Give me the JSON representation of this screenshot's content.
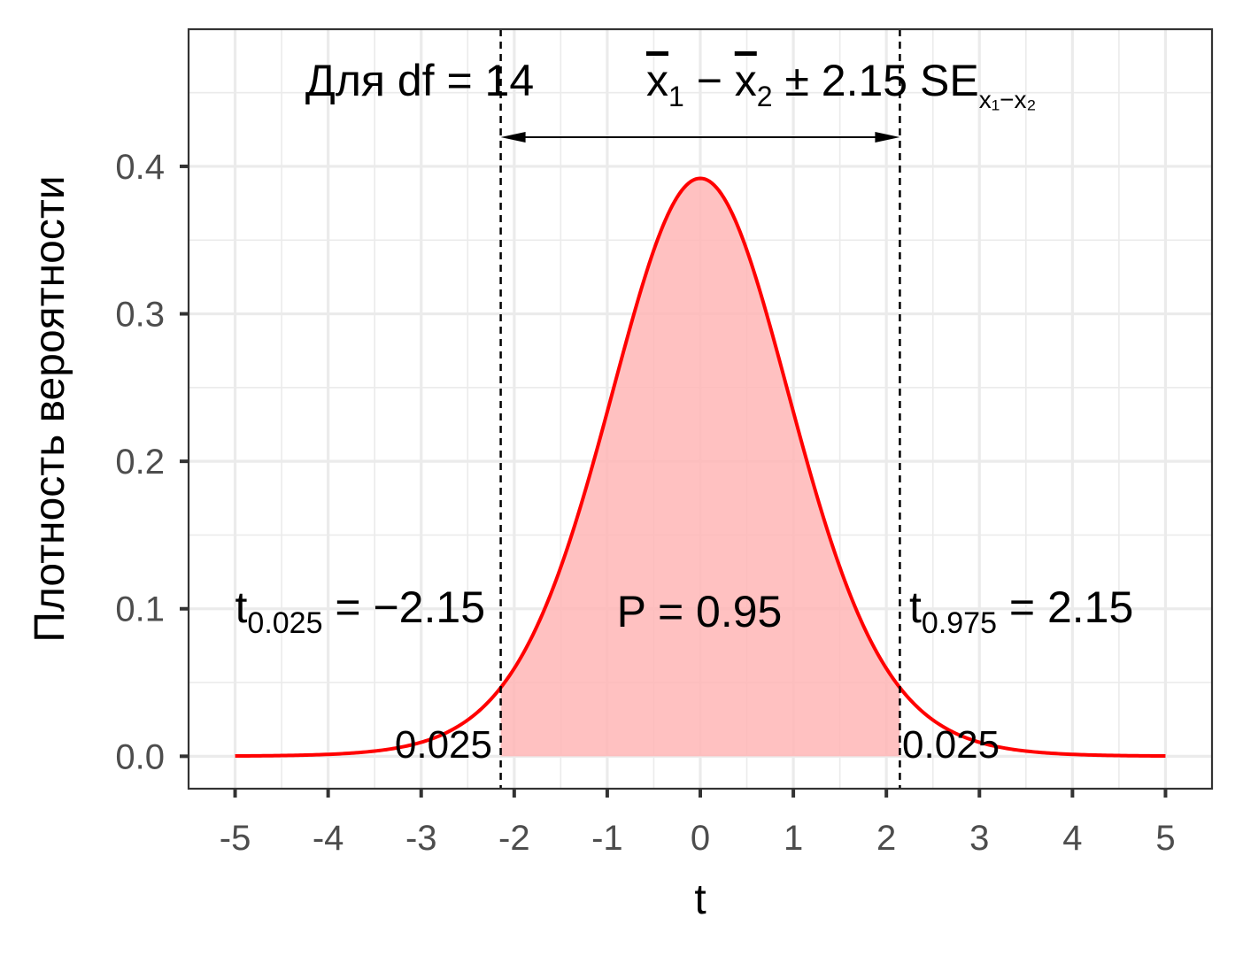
{
  "chart_data": {
    "type": "line",
    "title": "",
    "xlabel": "t",
    "ylabel": "Плотность вероятности",
    "xlim": [
      -5.5,
      5.5
    ],
    "ylim": [
      -0.022,
      0.493
    ],
    "x_ticks": [
      "-5",
      "-4",
      "-3",
      "-2",
      "-1",
      "0",
      "1",
      "2",
      "3",
      "4",
      "5"
    ],
    "y_ticks": [
      "0.0",
      "0.1",
      "0.2",
      "0.3",
      "0.4"
    ],
    "grid": true,
    "series": [
      {
        "distribution": "Student t",
        "df": 14,
        "color": "#ff0000",
        "x": [
          -5.0,
          -4.5,
          -4.0,
          -3.5,
          -3.0,
          -2.5,
          -2.145,
          -2.0,
          -1.5,
          -1.0,
          -0.5,
          0.0,
          0.5,
          1.0,
          1.5,
          2.0,
          2.145,
          2.5,
          3.0,
          3.5,
          4.0,
          4.5,
          5.0
        ],
        "y": [
          0.0004,
          0.0008,
          0.0017,
          0.0038,
          0.0086,
          0.0199,
          0.05,
          0.0625,
          0.1262,
          0.2361,
          0.3458,
          0.388,
          0.3458,
          0.2361,
          0.1262,
          0.0625,
          0.05,
          0.0199,
          0.0086,
          0.0038,
          0.0017,
          0.0008,
          0.0004
        ]
      }
    ],
    "shaded_region": {
      "from": -2.145,
      "to": 2.145,
      "color": "#ffb6b6"
    },
    "critical_values": [
      -2.145,
      2.145
    ],
    "annotations": {
      "df_label": "Для df = 14",
      "ci_formula": {
        "xbar1": "x",
        "sub1": "1",
        "minus": " − ",
        "xbar2": "x",
        "sub2": "2",
        "pm": " ± 2.15 SE",
        "se_sub": "x₁−x₂"
      },
      "prob_center": "P = 0.95",
      "left_t": {
        "base": "t",
        "sub": "0.025",
        "rest": " = −2.15"
      },
      "right_t": {
        "base": "t",
        "sub": "0.975",
        "rest": " = 2.15"
      },
      "left_tail": "0.025",
      "right_tail": "0.025"
    }
  }
}
